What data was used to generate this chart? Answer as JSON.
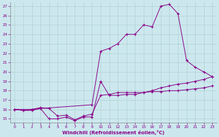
{
  "background_color": "#cce8ee",
  "line_color": "#880088",
  "xlim_min": -0.5,
  "xlim_max": 23.5,
  "ylim_min": 14.6,
  "ylim_max": 27.4,
  "yticks": [
    15,
    16,
    17,
    18,
    19,
    20,
    21,
    22,
    23,
    24,
    25,
    26,
    27
  ],
  "xticks": [
    0,
    1,
    2,
    3,
    4,
    5,
    6,
    7,
    8,
    9,
    10,
    11,
    12,
    13,
    14,
    15,
    16,
    17,
    18,
    19,
    20,
    21,
    22,
    23
  ],
  "xlabel": "Windchill (Refroidissement éolien,°C)",
  "line1_x": [
    0,
    1,
    2,
    3,
    4,
    5,
    6,
    7,
    8,
    9,
    10,
    11,
    12,
    13,
    14,
    15,
    16,
    17,
    18,
    19,
    20,
    21,
    22,
    23
  ],
  "line1_y": [
    16.0,
    15.9,
    15.9,
    16.1,
    15.0,
    15.0,
    15.2,
    14.8,
    15.2,
    15.2,
    19.0,
    17.5,
    17.5,
    17.6,
    17.6,
    17.8,
    18.0,
    18.3,
    18.5,
    18.7,
    18.8,
    19.0,
    19.2,
    19.5
  ],
  "line2_x": [
    0,
    2,
    3,
    9,
    10,
    11,
    12,
    13,
    14,
    15,
    16,
    17,
    18,
    19,
    20,
    21,
    22,
    23
  ],
  "line2_y": [
    16.0,
    16.0,
    16.1,
    16.5,
    22.2,
    22.5,
    23.0,
    24.0,
    24.0,
    25.0,
    24.8,
    27.0,
    27.2,
    26.2,
    21.2,
    20.5,
    20.0,
    19.5
  ],
  "line3_x": [
    0,
    1,
    2,
    3,
    4,
    5,
    6,
    7,
    8,
    9,
    10,
    11,
    12,
    13,
    14,
    15,
    16,
    17,
    18,
    19,
    20,
    21,
    22,
    23
  ],
  "line3_y": [
    16.0,
    15.9,
    16.0,
    16.2,
    16.1,
    15.3,
    15.4,
    14.9,
    15.3,
    15.5,
    17.5,
    17.6,
    17.8,
    17.8,
    17.8,
    17.8,
    17.9,
    17.9,
    18.0,
    18.0,
    18.1,
    18.2,
    18.3,
    18.5
  ]
}
